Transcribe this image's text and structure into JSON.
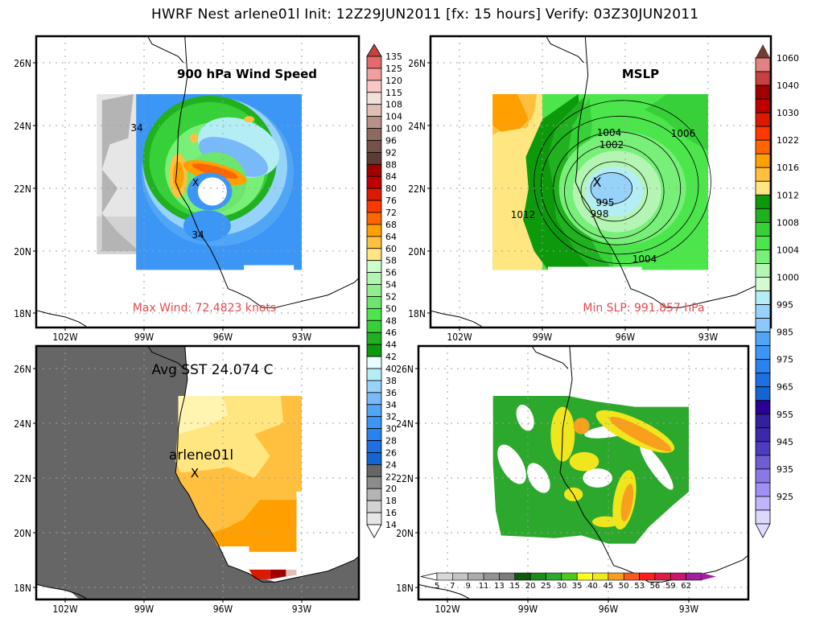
{
  "header": {
    "title": "HWRF Nest arlene01l Init: 12Z29JUN2011 [fx: 15 hours] Verify: 03Z30JUN2011"
  },
  "chart_data": [
    {
      "type": "heatmap",
      "panel": "top-left",
      "title": "900 hPa Wind Speed",
      "annotation": "Max Wind: 72.4823 knots",
      "contour_labels": [
        "34",
        "34"
      ],
      "storm_marker": "X",
      "xlabel": "",
      "ylabel": "",
      "x_ticks": [
        "102W",
        "99W",
        "96W",
        "93W"
      ],
      "y_ticks": [
        "26N",
        "24N",
        "22N",
        "20N",
        "18N"
      ],
      "grid": true,
      "colorbar": {
        "position": "right",
        "levels": [
          "135",
          "125",
          "120",
          "115",
          "108",
          "104",
          "100",
          "96",
          "92",
          "88",
          "84",
          "80",
          "76",
          "72",
          "68",
          "64",
          "60",
          "58",
          "56",
          "54",
          "52",
          "50",
          "48",
          "46",
          "44",
          "42",
          "40",
          "38",
          "36",
          "34",
          "32",
          "30",
          "28",
          "26",
          "24",
          "22",
          "20",
          "18",
          "16",
          "14"
        ],
        "colors": [
          "#e36b6b",
          "#f0a0a0",
          "#fac6c6",
          "#f0e0d8",
          "#e0beb4",
          "#b89088",
          "#8c6a60",
          "#74524a",
          "#5c3c34",
          "#a00000",
          "#c00000",
          "#dc1a00",
          "#ff3800",
          "#ff6600",
          "#ffa000",
          "#ffc040",
          "#ffe680",
          "#ccffcc",
          "#b0f5b0",
          "#90ee90",
          "#6ce66c",
          "#4ce64c",
          "#38d038",
          "#20b020",
          "#0c9a0c",
          "#e6ffff",
          "#b4eef4",
          "#96d2fa",
          "#78b9fa",
          "#50a5f5",
          "#3c96f5",
          "#2882f0",
          "#1e6ee6",
          "#1464d2",
          "#666666",
          "#8c8c8c",
          "#b4b4b4",
          "#d2d2d2",
          "#e6e6e6",
          "#ffffff"
        ]
      }
    },
    {
      "type": "heatmap",
      "panel": "top-right",
      "title": "MSLP",
      "annotation": "Min SLP: 991.857 hPa",
      "contour_labels": [
        "1004",
        "1002",
        "1006",
        "995",
        "998",
        "1012",
        "1004"
      ],
      "storm_marker": "X",
      "x_ticks": [
        "102W",
        "99W",
        "96W",
        "93W"
      ],
      "y_ticks": [
        "26N",
        "24N",
        "22N",
        "20N",
        "18N"
      ],
      "grid": true,
      "colorbar": {
        "position": "right",
        "labels": [
          "1060",
          "1040",
          "1030",
          "1022",
          "1016",
          "1012",
          "1008",
          "1004",
          "1000",
          "995",
          "985",
          "975",
          "965",
          "955",
          "945",
          "935",
          "925"
        ],
        "colors": [
          "#e38080",
          "#c84040",
          "#a00000",
          "#c00000",
          "#dc1a00",
          "#ff3800",
          "#ff6600",
          "#ffa000",
          "#ffc040",
          "#ffe680",
          "#0c9a0c",
          "#20b020",
          "#38d038",
          "#4ce64c",
          "#78ef78",
          "#b4f5b4",
          "#d4fad4",
          "#b4eef4",
          "#96d2fa",
          "#8cc8fa",
          "#50a5f5",
          "#3c96f5",
          "#2882f0",
          "#1e6ee6",
          "#1464d2",
          "#2c0096",
          "#32209e",
          "#3c28aa",
          "#4c3cc0",
          "#6e5cd2",
          "#8a78e6",
          "#a090f5",
          "#c0b4fa",
          "#dcd8fc"
        ]
      }
    },
    {
      "type": "heatmap",
      "panel": "bottom-left",
      "title": "Avg SST 24.074 C",
      "storm_label": "arlene01l",
      "storm_marker": "X",
      "x_ticks": [
        "102W",
        "99W",
        "96W",
        "93W"
      ],
      "y_ticks": [
        "26N",
        "24N",
        "22N",
        "20N",
        "18N"
      ],
      "grid": true
    },
    {
      "type": "heatmap",
      "panel": "bottom-right",
      "title": "",
      "x_ticks": [
        "102W",
        "99W",
        "96W",
        "93W"
      ],
      "y_ticks": [
        "26N",
        "24N",
        "22N",
        "20N",
        "18N"
      ],
      "grid": true,
      "colorbar": {
        "position": "bottom",
        "labels": [
          "5",
          "7",
          "9",
          "11",
          "13",
          "15",
          "20",
          "25",
          "30",
          "35",
          "40",
          "45",
          "50",
          "53",
          "56",
          "59",
          "62"
        ],
        "colors": [
          "#d8d8d8",
          "#c4c4c4",
          "#acacac",
          "#949494",
          "#7c7c7c",
          "#0e5a0e",
          "#1a8c1a",
          "#2ca82c",
          "#4ec81e",
          "#ffff1e",
          "#f0e61e",
          "#f8a01e",
          "#f85a1e",
          "#ff1e1e",
          "#dc1e46",
          "#c8186e",
          "#a020a0"
        ]
      }
    }
  ]
}
